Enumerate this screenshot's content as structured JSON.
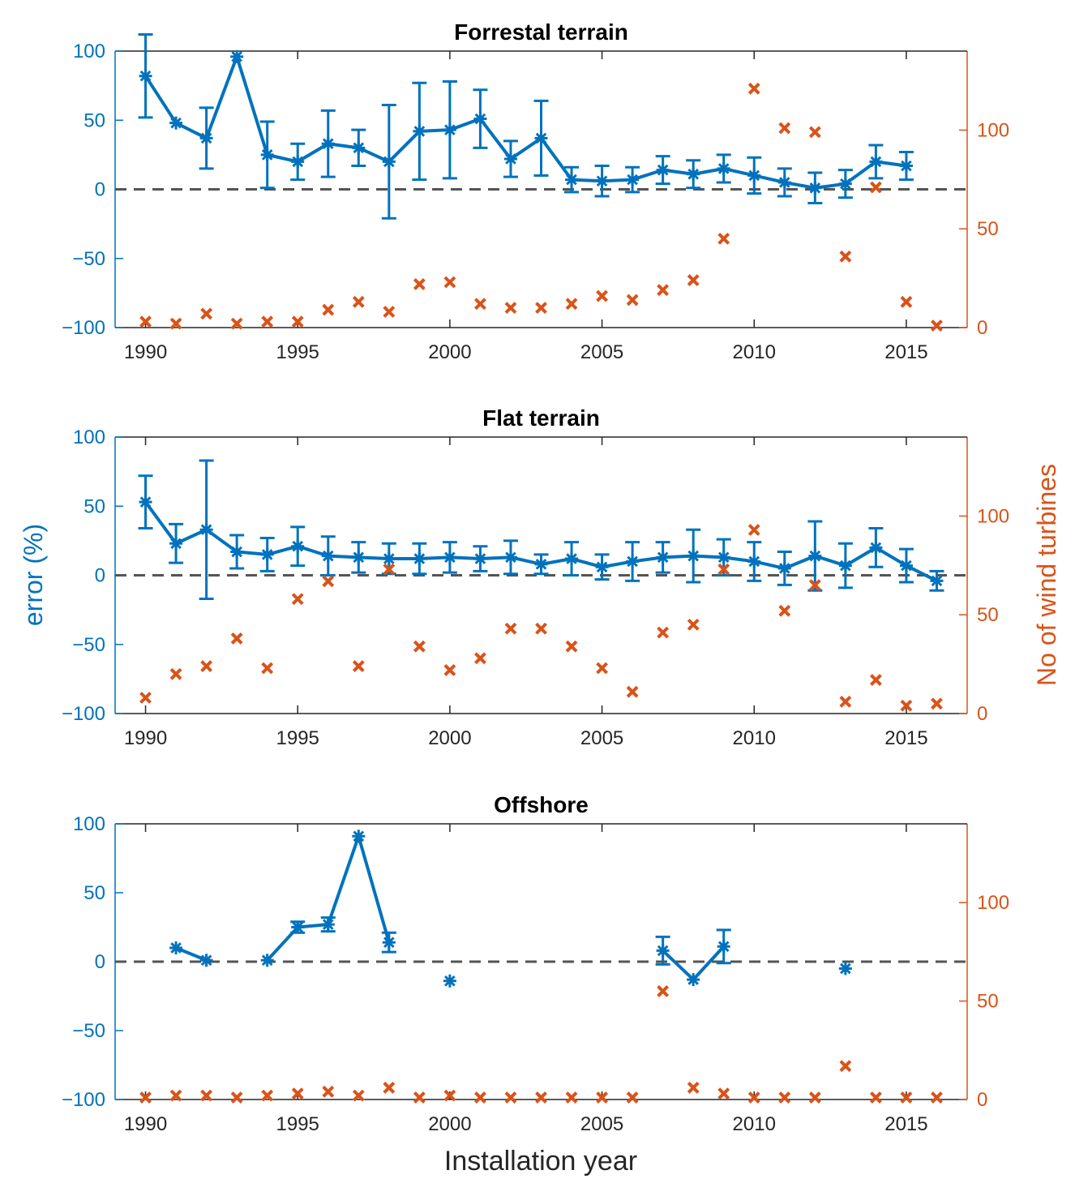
{
  "colors": {
    "error": "#0072BD",
    "turbines": "#D95319",
    "axis": "#262626",
    "zero": "#555555"
  },
  "shared": {
    "ylabel_left": "error (%)",
    "ylabel_right": "No of wind turbines",
    "xlabel": "Installation year",
    "x_ticks": [
      1990,
      1995,
      2000,
      2005,
      2010,
      2015
    ],
    "y_left_ticks": [
      -100,
      -50,
      0,
      50,
      100
    ],
    "y_right_ticks": [
      0,
      50,
      100
    ],
    "x_ticks_text": [
      "1990",
      "1995",
      "2000",
      "2005",
      "2010",
      "2015"
    ],
    "y_left_ticks_text": [
      "−100",
      "−50",
      "0",
      "50",
      "100"
    ],
    "y_right_ticks_text": [
      "0",
      "50",
      "100"
    ]
  },
  "chart_data": [
    {
      "type": "line",
      "title": "Forrestal terrain",
      "xlim": [
        1989,
        2017
      ],
      "ylim": [
        -100,
        100
      ],
      "ylim_right": [
        0,
        140
      ],
      "error_series": {
        "name": "error (%)",
        "x": [
          1990,
          1991,
          1992,
          1993,
          1994,
          1995,
          1996,
          1997,
          1998,
          1999,
          2000,
          2001,
          2002,
          2003,
          2004,
          2005,
          2006,
          2007,
          2008,
          2009,
          2010,
          2011,
          2012,
          2013,
          2014,
          2015
        ],
        "y": [
          82,
          48,
          37,
          96,
          25,
          20,
          33,
          30,
          20,
          42,
          43,
          51,
          22,
          37,
          7,
          6,
          7,
          14,
          11,
          15,
          10,
          5,
          1,
          4,
          20,
          17
        ],
        "err": [
          30,
          0,
          22,
          0,
          24,
          13,
          24,
          13,
          41,
          35,
          35,
          21,
          13,
          27,
          9,
          11,
          9,
          10,
          10,
          10,
          13,
          10,
          11,
          10,
          12,
          10
        ]
      },
      "turbines_series": {
        "name": "No of wind turbines",
        "x": [
          1990,
          1991,
          1992,
          1993,
          1994,
          1995,
          1996,
          1997,
          1998,
          1999,
          2000,
          2001,
          2002,
          2003,
          2004,
          2005,
          2006,
          2007,
          2008,
          2009,
          2010,
          2011,
          2012,
          2013,
          2014,
          2015,
          2016
        ],
        "y": [
          3,
          2,
          7,
          2,
          3,
          3,
          9,
          13,
          8,
          22,
          23,
          12,
          10,
          10,
          12,
          16,
          14,
          19,
          24,
          45,
          121,
          101,
          99,
          36,
          71,
          13,
          1
        ]
      }
    },
    {
      "type": "line",
      "title": "Flat terrain",
      "xlim": [
        1989,
        2017
      ],
      "ylim": [
        -100,
        100
      ],
      "ylim_right": [
        0,
        140
      ],
      "error_series": {
        "name": "error (%)",
        "x": [
          1990,
          1991,
          1992,
          1993,
          1994,
          1995,
          1996,
          1997,
          1998,
          1999,
          2000,
          2001,
          2002,
          2003,
          2004,
          2005,
          2006,
          2007,
          2008,
          2009,
          2010,
          2011,
          2012,
          2013,
          2014,
          2015,
          2016
        ],
        "y": [
          53,
          23,
          33,
          17,
          15,
          21,
          14,
          13,
          12,
          12,
          13,
          12,
          13,
          8,
          12,
          6,
          10,
          13,
          14,
          13,
          10,
          5,
          14,
          7,
          20,
          7,
          -4
        ],
        "err": [
          19,
          14,
          50,
          12,
          12,
          14,
          14,
          11,
          11,
          11,
          11,
          9,
          12,
          7,
          12,
          9,
          14,
          11,
          19,
          13,
          14,
          12,
          25,
          16,
          14,
          12,
          7
        ]
      },
      "turbines_series": {
        "name": "No of wind turbines",
        "x": [
          1990,
          1991,
          1992,
          1993,
          1994,
          1995,
          1996,
          1997,
          1998,
          1999,
          2000,
          2001,
          2002,
          2003,
          2004,
          2005,
          2006,
          2007,
          2008,
          2009,
          2010,
          2011,
          2012,
          2013,
          2014,
          2015,
          2016
        ],
        "y": [
          8,
          20,
          24,
          38,
          23,
          58,
          67,
          24,
          73,
          34,
          22,
          28,
          43,
          43,
          34,
          23,
          11,
          41,
          45,
          73,
          93,
          52,
          65,
          6,
          17,
          4,
          5
        ]
      }
    },
    {
      "type": "line",
      "title": "Offshore",
      "xlim": [
        1989,
        2017
      ],
      "ylim": [
        -100,
        100
      ],
      "ylim_right": [
        0,
        140
      ],
      "error_series": {
        "name": "error (%)",
        "segments": [
          {
            "x": [
              1991,
              1992
            ],
            "y": [
              10,
              1
            ],
            "err": [
              0,
              0
            ]
          },
          {
            "x": [
              1994,
              1995,
              1996,
              1997,
              1998
            ],
            "y": [
              1,
              25,
              27,
              91,
              14
            ],
            "err": [
              0,
              4,
              5,
              0,
              7
            ]
          },
          {
            "x": [
              2000
            ],
            "y": [
              -14
            ],
            "err": [
              0
            ]
          },
          {
            "x": [
              2007,
              2008,
              2009
            ],
            "y": [
              8,
              -13,
              11
            ],
            "err": [
              10,
              0,
              12
            ]
          },
          {
            "x": [
              2013
            ],
            "y": [
              -5
            ],
            "err": [
              0
            ]
          }
        ]
      },
      "turbines_series": {
        "name": "No of wind turbines",
        "x": [
          1990,
          1991,
          1992,
          1993,
          1994,
          1995,
          1996,
          1997,
          1998,
          1999,
          2000,
          2001,
          2002,
          2003,
          2004,
          2005,
          2006,
          2007,
          2008,
          2009,
          2010,
          2011,
          2012,
          2013,
          2014,
          2015,
          2016
        ],
        "y": [
          1,
          2,
          2,
          1,
          2,
          3,
          4,
          2,
          6,
          1,
          2,
          1,
          1,
          1,
          1,
          1,
          1,
          55,
          6,
          3,
          1,
          1,
          1,
          17,
          1,
          1,
          1
        ]
      }
    }
  ]
}
